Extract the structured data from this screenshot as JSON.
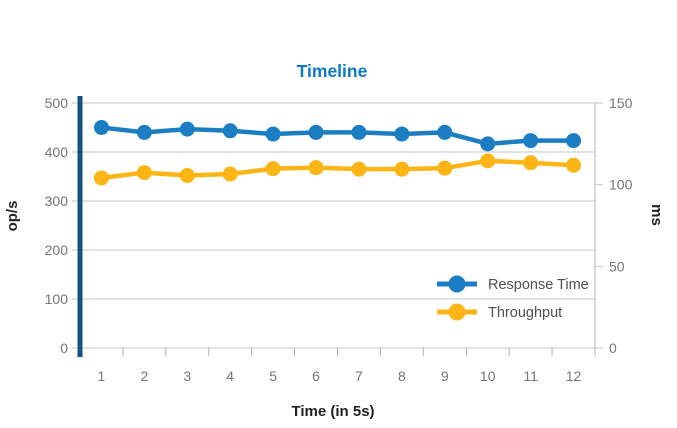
{
  "title": "Timeline",
  "colors": {
    "title": "#0a7ac4",
    "left_axis_line": "#14537e",
    "right_axis_line": "#b5b5b5",
    "grid": "#c7c7c7",
    "tick_mark": "#b0b0b0",
    "tick_text": "#757575",
    "label_text": "#222222",
    "legend_text": "#4f4f4f",
    "background": "#ffffff",
    "response_time": "#1b7ec3",
    "throughput": "#fdb515"
  },
  "chart_data": {
    "type": "line",
    "title": "Timeline",
    "xlabel": "Time (in 5s)",
    "x": [
      1,
      2,
      3,
      4,
      5,
      6,
      7,
      8,
      9,
      10,
      11,
      12
    ],
    "left_axis": {
      "label": "op/s",
      "range": [
        0,
        500
      ],
      "ticks": [
        0,
        100,
        200,
        300,
        400,
        500
      ]
    },
    "right_axis": {
      "label": "ms",
      "range": [
        0,
        150
      ],
      "ticks": [
        0,
        50,
        100,
        150
      ]
    },
    "grid": true,
    "legend_position": "inside-bottom-right",
    "series": [
      {
        "name": "Response Time",
        "axis": "right",
        "unit": "ms",
        "color": "#1b7ec3",
        "values": [
          135,
          132,
          134,
          133,
          131,
          132,
          132,
          131,
          132,
          125,
          127,
          127
        ]
      },
      {
        "name": "Throughput",
        "axis": "left",
        "unit": "op/s",
        "color": "#fdb515",
        "values": [
          347,
          358,
          352,
          355,
          366,
          368,
          365,
          365,
          367,
          382,
          378,
          373
        ]
      }
    ]
  }
}
